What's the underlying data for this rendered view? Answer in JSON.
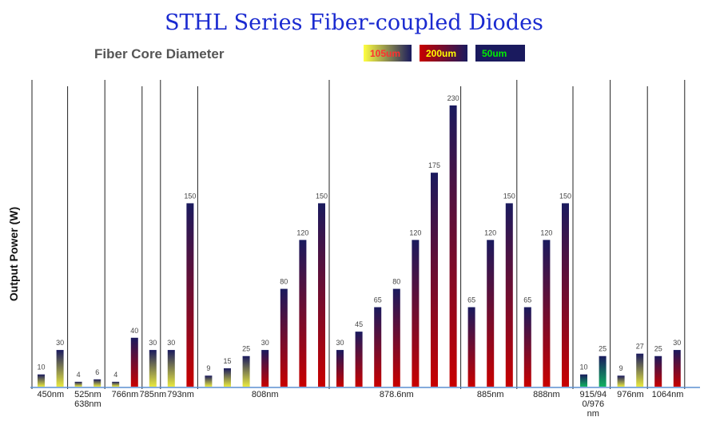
{
  "chart_data": {
    "type": "bar",
    "title": "STHL Series Fiber-coupled Diodes",
    "ylabel": "Output Power (W)",
    "xlabel": "",
    "ylim": [
      0,
      230
    ],
    "grid": false,
    "legend": {
      "heading": "Fiber Core Diameter",
      "placement": "top-right",
      "entries": [
        {
          "label": "105um",
          "color": "#ffff40",
          "text_color": "#ff3030"
        },
        {
          "label": "200um",
          "color": "#c80000",
          "text_color": "#ffff00"
        },
        {
          "label": "50um",
          "color": "#1a1a5e",
          "text_color": "#00ee00"
        }
      ]
    },
    "colors": {
      "105um": "#e8e840",
      "200um": "#c80000",
      "50um": "#10b060",
      "top": "#1a1a5e"
    },
    "groups": [
      {
        "label": [
          "450nm"
        ],
        "bars": [
          {
            "value": 10,
            "core": "105um"
          },
          {
            "value": 30,
            "core": "105um"
          }
        ]
      },
      {
        "label": [
          "525nm",
          "638nm"
        ],
        "bars": [
          {
            "value": 4,
            "core": "105um"
          },
          {
            "value": 6,
            "core": "105um"
          }
        ]
      },
      {
        "label": [
          "766nm"
        ],
        "bars": [
          {
            "value": 4,
            "core": "105um"
          },
          {
            "value": 40,
            "core": "200um"
          }
        ]
      },
      {
        "label": [
          "785nm"
        ],
        "bars": [
          {
            "value": 30,
            "core": "105um"
          }
        ]
      },
      {
        "label": [
          "793nm"
        ],
        "bars": [
          {
            "value": 30,
            "core": "105um"
          },
          {
            "value": 150,
            "core": "200um"
          }
        ]
      },
      {
        "label": [
          "808nm"
        ],
        "bars": [
          {
            "value": 9,
            "core": "105um"
          },
          {
            "value": 15,
            "core": "105um"
          },
          {
            "value": 25,
            "core": "105um"
          },
          {
            "value": 30,
            "core": "200um"
          },
          {
            "value": 80,
            "core": "200um"
          },
          {
            "value": 120,
            "core": "200um"
          },
          {
            "value": 150,
            "core": "200um"
          }
        ]
      },
      {
        "label": [
          "878.6nm"
        ],
        "bars": [
          {
            "value": 30,
            "core": "200um"
          },
          {
            "value": 45,
            "core": "200um"
          },
          {
            "value": 65,
            "core": "200um"
          },
          {
            "value": 80,
            "core": "200um"
          },
          {
            "value": 120,
            "core": "200um"
          },
          {
            "value": 175,
            "core": "200um"
          },
          {
            "value": 230,
            "core": "200um"
          }
        ]
      },
      {
        "label": [
          "885nm"
        ],
        "bars": [
          {
            "value": 65,
            "core": "200um"
          },
          {
            "value": 120,
            "core": "200um"
          },
          {
            "value": 150,
            "core": "200um"
          }
        ]
      },
      {
        "label": [
          "888nm"
        ],
        "bars": [
          {
            "value": 65,
            "core": "200um"
          },
          {
            "value": 120,
            "core": "200um"
          },
          {
            "value": 150,
            "core": "200um"
          }
        ]
      },
      {
        "label": [
          "915/94",
          "0/976",
          "nm"
        ],
        "bars": [
          {
            "value": 10,
            "core": "50um"
          },
          {
            "value": 25,
            "core": "50um"
          }
        ]
      },
      {
        "label": [
          "976nm"
        ],
        "bars": [
          {
            "value": 9,
            "core": "105um"
          },
          {
            "value": 27,
            "core": "105um"
          }
        ]
      },
      {
        "label": [
          "1064nm"
        ],
        "bars": [
          {
            "value": 25,
            "core": "200um"
          },
          {
            "value": 30,
            "core": "200um"
          }
        ]
      }
    ]
  }
}
